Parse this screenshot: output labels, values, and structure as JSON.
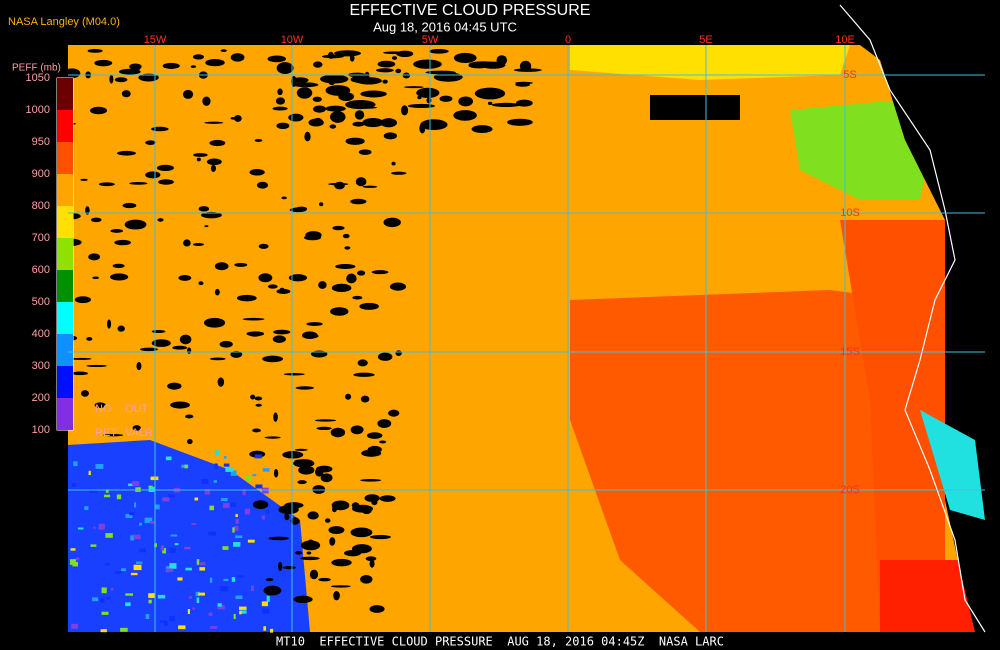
{
  "header": {
    "source": "NASA Langley (M04.0)",
    "title": "EFFECTIVE CLOUD PRESSURE",
    "subtitle": "Aug 18, 2016 04:45 UTC"
  },
  "legend": {
    "title": "PEFF (mb)",
    "ticks": [
      "1050",
      "1000",
      "950",
      "900",
      "800",
      "700",
      "600",
      "500",
      "400",
      "300",
      "200",
      "100"
    ],
    "notes": [
      "NO",
      "OUT",
      "RET",
      "VALR"
    ]
  },
  "map": {
    "longitude_labels": [
      "15W",
      "10W",
      "5W",
      "0",
      "5E",
      "10E"
    ],
    "latitude_labels": [
      "5S",
      "10S",
      "15S",
      "20S"
    ]
  },
  "footer": "MT10  EFFECTIVE CLOUD PRESSURE  AUG 18, 2016 04:45Z  NASA LARC"
}
